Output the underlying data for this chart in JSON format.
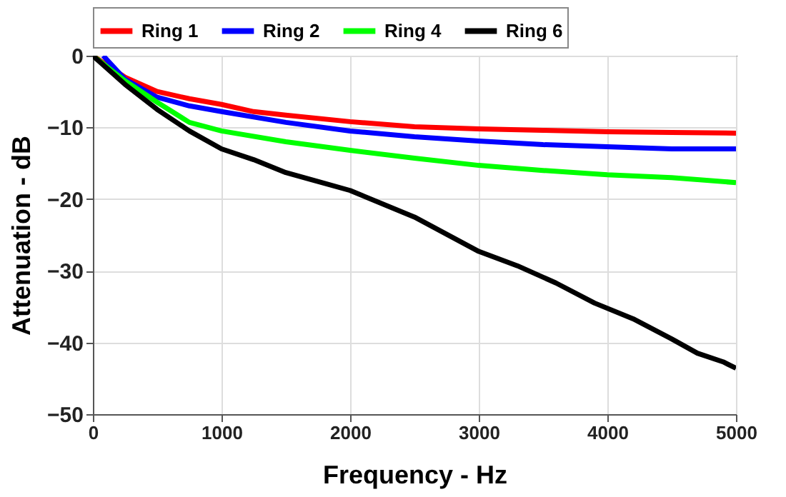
{
  "chart_data": {
    "type": "line",
    "xlabel": "Frequency - Hz",
    "ylabel": "Attenuation - dB",
    "xlim": [
      0,
      5000
    ],
    "ylim": [
      -50,
      0
    ],
    "xticks": [
      0,
      1000,
      2000,
      3000,
      4000,
      5000
    ],
    "yticks": [
      -50,
      -40,
      -30,
      -20,
      -10,
      0
    ],
    "grid": true,
    "legend": "top",
    "line_style": "solid",
    "marker": "none",
    "series": [
      {
        "name": "Ring 1",
        "color": "#ff0000",
        "x": [
          0,
          250,
          500,
          750,
          1000,
          1250,
          1500,
          2000,
          2500,
          3000,
          3500,
          4000,
          4500,
          5000
        ],
        "values": [
          0,
          -3,
          -5,
          -6,
          -6.8,
          -7.8,
          -8.3,
          -9.2,
          -9.9,
          -10.2,
          -10.4,
          -10.6,
          -10.7,
          -10.8
        ]
      },
      {
        "name": "Ring 2",
        "color": "#0000ff",
        "x": [
          80,
          250,
          500,
          750,
          1000,
          1500,
          2000,
          2500,
          3000,
          3500,
          4000,
          4500,
          5000
        ],
        "values": [
          0,
          -3.3,
          -5.8,
          -7,
          -7.8,
          -9.3,
          -10.5,
          -11.3,
          -11.9,
          -12.4,
          -12.7,
          -13,
          -13
        ]
      },
      {
        "name": "Ring 4",
        "color": "#00ff00",
        "x": [
          0,
          250,
          500,
          750,
          1000,
          1500,
          2000,
          2500,
          3000,
          3500,
          4000,
          4500,
          5000
        ],
        "values": [
          0,
          -3.5,
          -6.5,
          -9.3,
          -10.5,
          -12,
          -13.2,
          -14.3,
          -15.3,
          -16,
          -16.6,
          -17,
          -17.7
        ]
      },
      {
        "name": "Ring 6",
        "color": "#000000",
        "x": [
          0,
          250,
          500,
          750,
          1000,
          1250,
          1500,
          2000,
          2500,
          3000,
          3300,
          3600,
          3900,
          4200,
          4500,
          4700,
          4900,
          5000
        ],
        "values": [
          0,
          -4,
          -7.5,
          -10.5,
          -13,
          -14.5,
          -16.3,
          -18.8,
          -22.5,
          -27.3,
          -29.3,
          -31.7,
          -34.5,
          -36.7,
          -39.5,
          -41.5,
          -42.7,
          -43.6
        ]
      }
    ]
  }
}
